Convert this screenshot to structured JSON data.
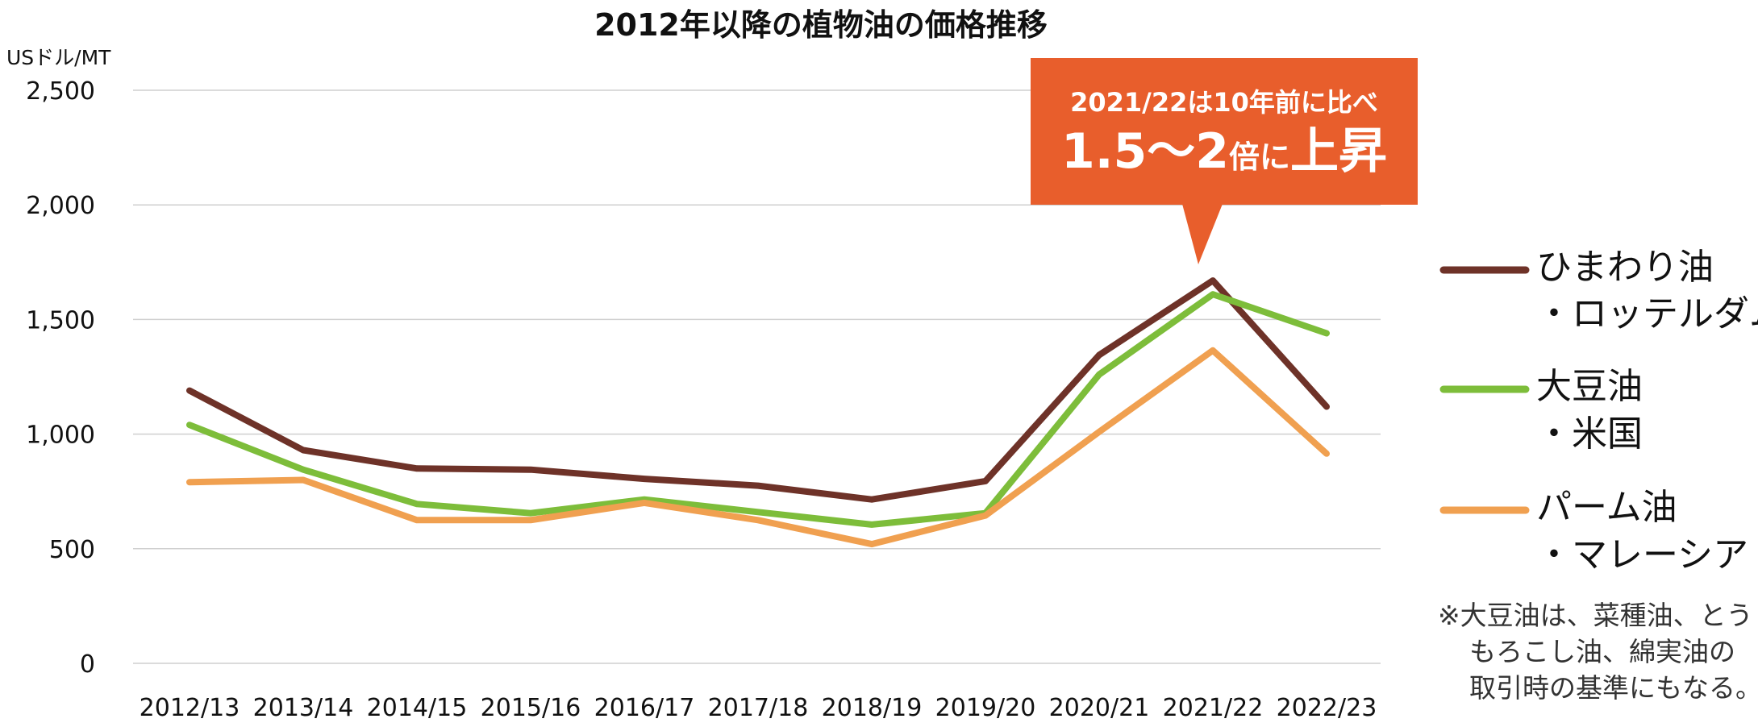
{
  "chart_data": {
    "type": "line",
    "title": "2012年以降の植物油の価格推移",
    "ylabel": "USドル/MT",
    "xlabel": "",
    "ylim": [
      0,
      2500
    ],
    "yticks": [
      0,
      500,
      1000,
      1500,
      2000,
      2500
    ],
    "ytick_labels": [
      "0",
      "500",
      "1,000",
      "1,500",
      "2,000",
      "2,500"
    ],
    "grid": true,
    "legend_position": "right",
    "categories": [
      "2012/13",
      "2013/14",
      "2014/15",
      "2015/16",
      "2016/17",
      "2017/18",
      "2018/19",
      "2019/20",
      "2020/21",
      "2021/22",
      "2022/23"
    ],
    "series": [
      {
        "name_line1": "ひまわり油",
        "name_line2": "・ロッテルダム",
        "color": "#6e3228",
        "values": [
          1190,
          930,
          850,
          845,
          805,
          775,
          715,
          795,
          1345,
          1670,
          1120
        ]
      },
      {
        "name_line1": "大豆油",
        "name_line2": "・米国",
        "color": "#7dbd3a",
        "values": [
          1040,
          845,
          695,
          655,
          715,
          660,
          605,
          655,
          1260,
          1610,
          1440
        ]
      },
      {
        "name_line1": "パーム油",
        "name_line2": "・マレーシア",
        "color": "#f0a050",
        "values": [
          790,
          800,
          625,
          625,
          700,
          625,
          520,
          645,
          1010,
          1365,
          915
        ]
      }
    ],
    "annotation": {
      "line1": "2021/22は10年前に比べ",
      "big1": "1.5～2",
      "mid": "倍に",
      "big2": "上昇",
      "color": "#e85e2c",
      "points_to_category": "2021/22"
    },
    "note": [
      "※大豆油は、菜種油、とう",
      "もろこし油、綿実油の",
      "取引時の基準にもなる。"
    ]
  }
}
